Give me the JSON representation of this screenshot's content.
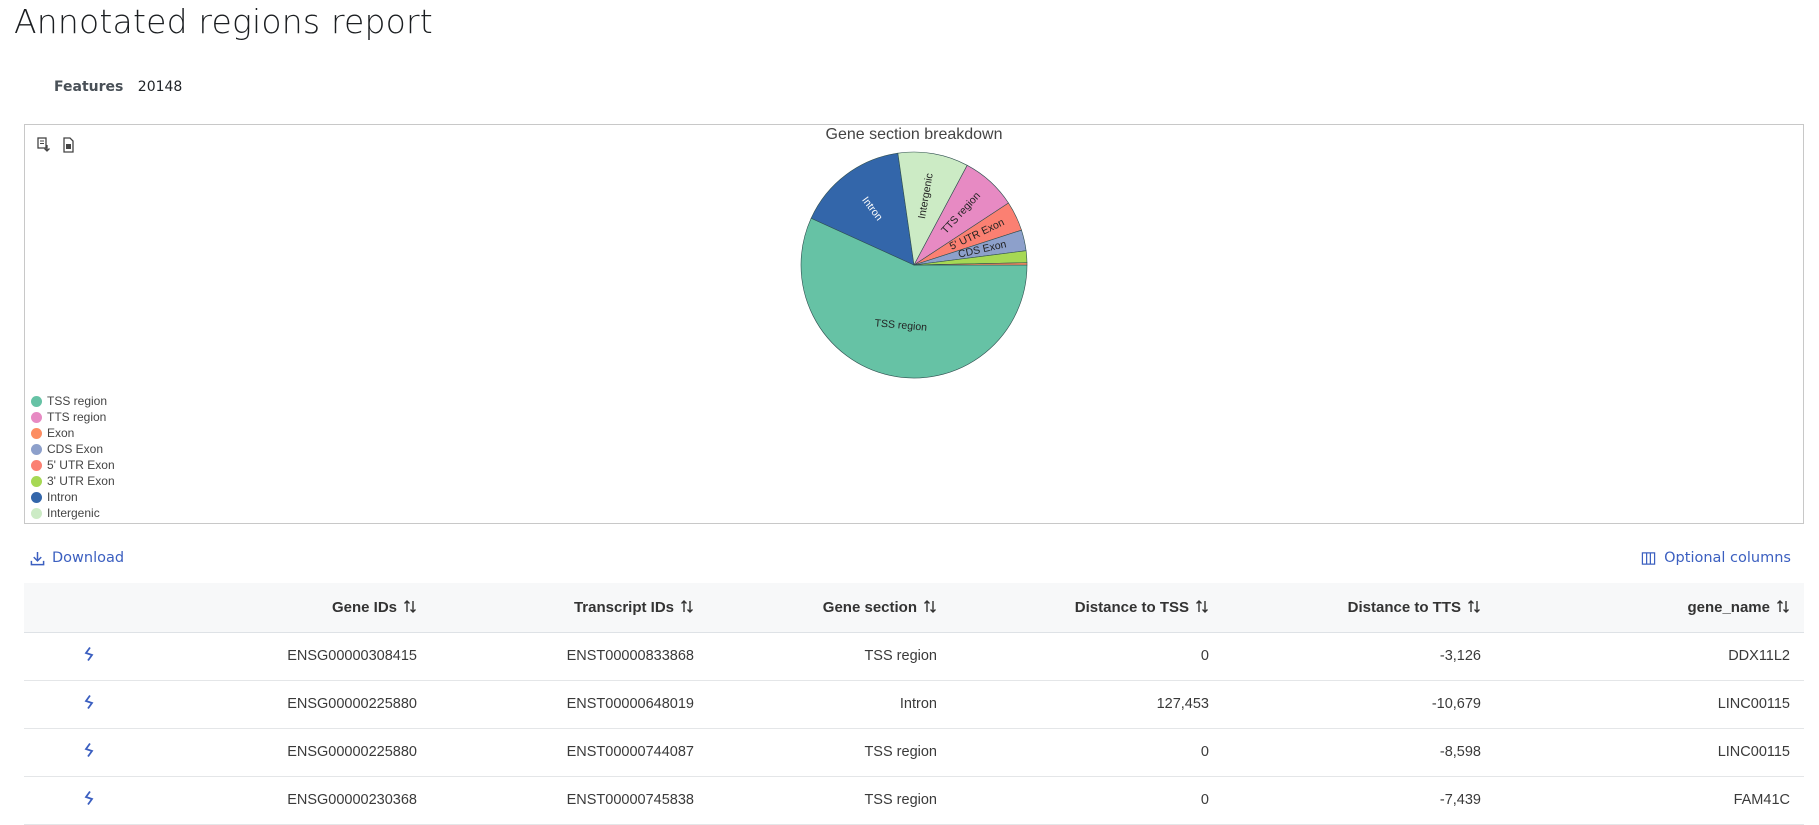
{
  "page": {
    "title": "Annotated regions report"
  },
  "stats": {
    "features_label": "Features",
    "features_value": "20148"
  },
  "chart_data": {
    "type": "pie",
    "title": "Gene section breakdown",
    "labels": [
      "TSS region",
      "TTS region",
      "Exon",
      "CDS Exon",
      "5' UTR Exon",
      "3' UTR Exon",
      "Intron",
      "Intergenic"
    ],
    "values": [
      53.5,
      7.5,
      0.3,
      2.8,
      4.0,
      1.6,
      15.0,
      9.5
    ],
    "colors": [
      "#66c2a5",
      "#e78ac3",
      "#fc8d62",
      "#8da0cb",
      "#fb8072",
      "#a6d854",
      "#3366aa",
      "#ccebc5"
    ],
    "slice_labels": [
      "TSS region",
      "TTS region",
      "",
      "CDS Exon",
      "5' UTR Exon",
      "",
      "Intron",
      "Intergenic"
    ],
    "legend": [
      "TSS region",
      "TTS region",
      "Exon",
      "CDS Exon",
      "5' UTR Exon",
      "3' UTR Exon",
      "Intron",
      "Intergenic"
    ],
    "legend_placement": "bottom-left"
  },
  "chart_tools": {
    "download_icon": "download-data-icon",
    "export_icon": "export-image-icon"
  },
  "toolbar": {
    "download_label": "Download",
    "optional_columns_label": "Optional columns"
  },
  "table": {
    "columns": [
      "",
      "Gene IDs",
      "Transcript IDs",
      "Gene section",
      "Distance to TSS",
      "Distance to TTS",
      "gene_name"
    ],
    "rows": [
      [
        "ENSG00000308415",
        "ENST00000833868",
        "TSS region",
        "0",
        "-3,126",
        "DDX11L2"
      ],
      [
        "ENSG00000225880",
        "ENST00000648019",
        "Intron",
        "127,453",
        "-10,679",
        "LINC00115"
      ],
      [
        "ENSG00000225880",
        "ENST00000744087",
        "TSS region",
        "0",
        "-8,598",
        "LINC00115"
      ],
      [
        "ENSG00000230368",
        "ENST00000745838",
        "TSS region",
        "0",
        "-7,439",
        "FAM41C"
      ]
    ]
  }
}
